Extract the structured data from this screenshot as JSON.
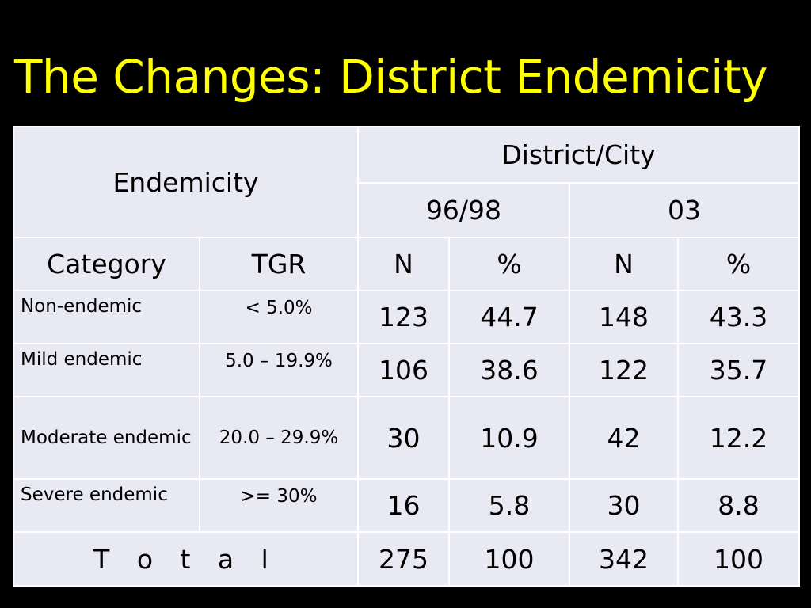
{
  "title": "The Changes: District Endemicity",
  "table": {
    "header_endemicity": "Endemicity",
    "header_district_city": "District/City",
    "header_period_1": "96/98",
    "header_period_2": "03",
    "col_category": "Category",
    "col_tgr": "TGR",
    "col_n_1": "N",
    "col_pct_1": "%",
    "col_n_2": "N",
    "col_pct_2": "%",
    "rows": [
      {
        "category": "Non-endemic",
        "tgr": "< 5.0%",
        "n1": "123",
        "p1": "44.7",
        "n2": "148",
        "p2": "43.3"
      },
      {
        "category": "Mild endemic",
        "tgr": "5.0 – 19.9%",
        "n1": "106",
        "p1": "38.6",
        "n2": "122",
        "p2": "35.7"
      },
      {
        "category": "Moderate endemic",
        "tgr": "20.0 – 29.9%",
        "n1": "30",
        "p1": "10.9",
        "n2": "42",
        "p2": "12.2"
      },
      {
        "category": "Severe endemic",
        "tgr": ">= 30%",
        "n1": "16",
        "p1": "5.8",
        "n2": "30",
        "p2": "8.8"
      }
    ],
    "total": {
      "label": "T o t a l",
      "n1": "275",
      "p1": "100",
      "n2": "342",
      "p2": "100"
    }
  }
}
